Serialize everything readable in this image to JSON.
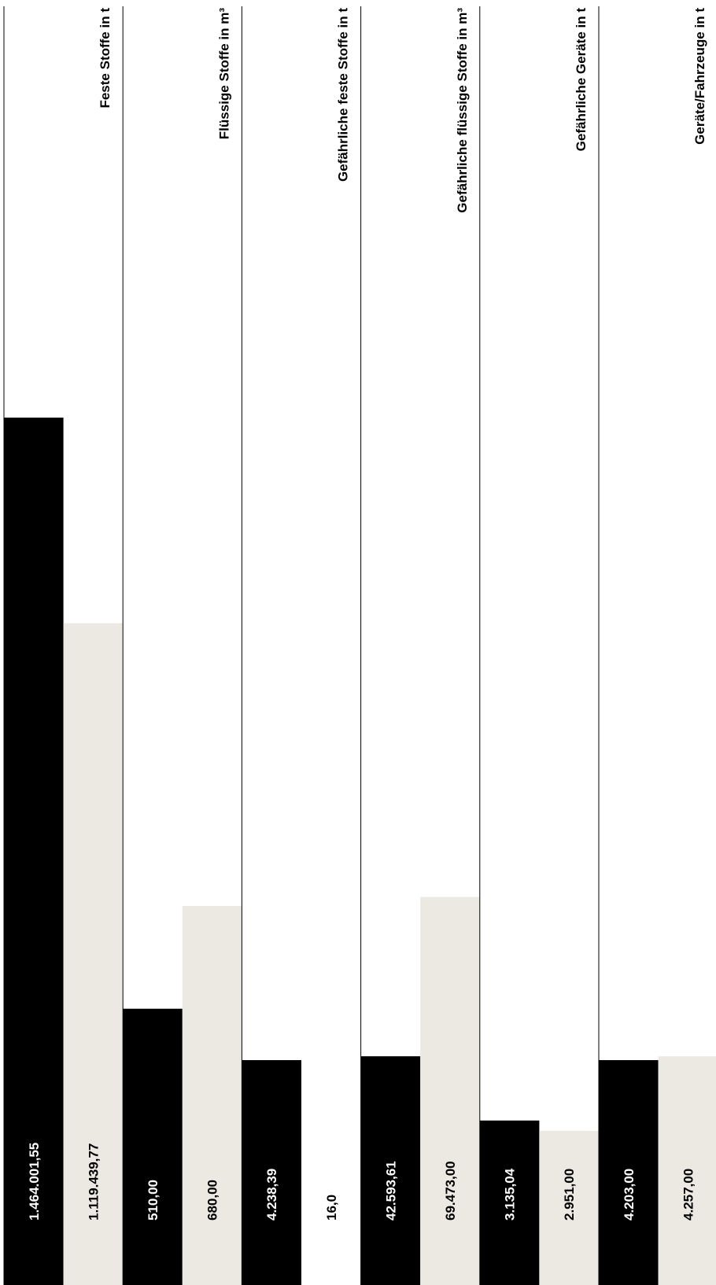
{
  "chart_data": {
    "type": "bar",
    "orientation": "rotated-vertical",
    "categories": [
      "Feste Stoffe in t",
      "Flüssige Stoffe in m³",
      "Gefährliche feste Stoffe in t",
      "Gefährliche flüssige Stoffe in m³",
      "Gefährliche Geräte in t",
      "Geräte/Fahrzeuge in t"
    ],
    "series": [
      {
        "color": "#000000",
        "values": [
          1464001.55,
          510.0,
          4238.39,
          42593.61,
          3135.04,
          4203.0
        ],
        "labels": [
          "1.464.001,55",
          "510,00",
          "4.238,39",
          "42.593,61",
          "3.135,04",
          "4.203,00"
        ]
      },
      {
        "color": "#ece9e3",
        "values": [
          1119439.77,
          680.0,
          16.0,
          69473.0,
          2951.0,
          4257.0
        ],
        "labels": [
          "1.119.439,77",
          "680,00",
          "16,0",
          "69.473,00",
          "2.951,00",
          "4.257,00"
        ]
      }
    ],
    "bar_fill_fraction": [
      [
        0.675,
        0.515
      ],
      [
        0.215,
        0.295
      ],
      [
        0.175,
        0.0
      ],
      [
        0.178,
        0.302
      ],
      [
        0.128,
        0.12
      ],
      [
        0.175,
        0.178
      ]
    ],
    "xlabel": "",
    "ylabel": "",
    "grid": false,
    "legend": "none"
  }
}
